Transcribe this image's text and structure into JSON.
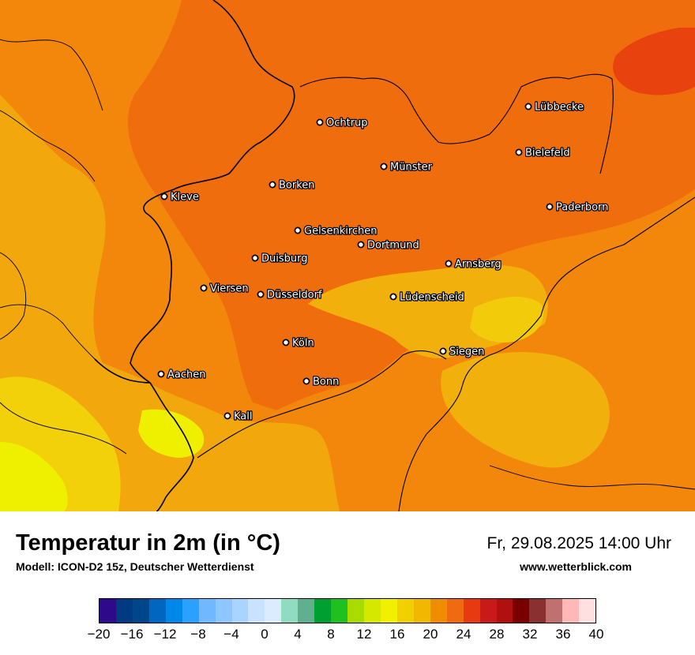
{
  "title": "Temperatur in 2m (in °C)",
  "subtitle": "Modell: ICON-D2 15z, Deutscher Wetterdienst",
  "datetime": "Fr, 29.08.2025 14:00 Uhr",
  "website": "www.wetterblick.com",
  "cities": [
    {
      "name": "Lübbecke"
    },
    {
      "name": "Ochtrup"
    },
    {
      "name": "Bielefeld"
    },
    {
      "name": "Münster"
    },
    {
      "name": "Borken"
    },
    {
      "name": "Kleve"
    },
    {
      "name": "Paderborn"
    },
    {
      "name": "Gelsenkirchen"
    },
    {
      "name": "Dortmund"
    },
    {
      "name": "Duisburg"
    },
    {
      "name": "Arnsberg"
    },
    {
      "name": "Viersen"
    },
    {
      "name": "Düsseldorf"
    },
    {
      "name": "Lüdenscheid"
    },
    {
      "name": "Köln"
    },
    {
      "name": "Siegen"
    },
    {
      "name": "Aachen"
    },
    {
      "name": "Bonn"
    },
    {
      "name": "Kall"
    }
  ],
  "colorbar": {
    "colors": [
      "#2e0a8a",
      "#003a80",
      "#00468a",
      "#0066c0",
      "#0088e8",
      "#2aa0ff",
      "#70b8ff",
      "#8ec6ff",
      "#a8d4ff",
      "#c8e2ff",
      "#dcecff",
      "#8fdcc0",
      "#60b090",
      "#00a030",
      "#20c020",
      "#a8dc00",
      "#d4e800",
      "#f0f000",
      "#f0d000",
      "#f0b800",
      "#f08c00",
      "#f06a10",
      "#e83a10",
      "#c81a18",
      "#b01010",
      "#7a0000",
      "#8a3030",
      "#c07070",
      "#ffb8b8",
      "#ffe0e0"
    ],
    "ticks": [
      "−20",
      "−16",
      "−12",
      "−8",
      "−4",
      "0",
      "4",
      "8",
      "12",
      "16",
      "20",
      "24",
      "28",
      "32",
      "36",
      "40"
    ],
    "min": -20,
    "max": 40
  }
}
